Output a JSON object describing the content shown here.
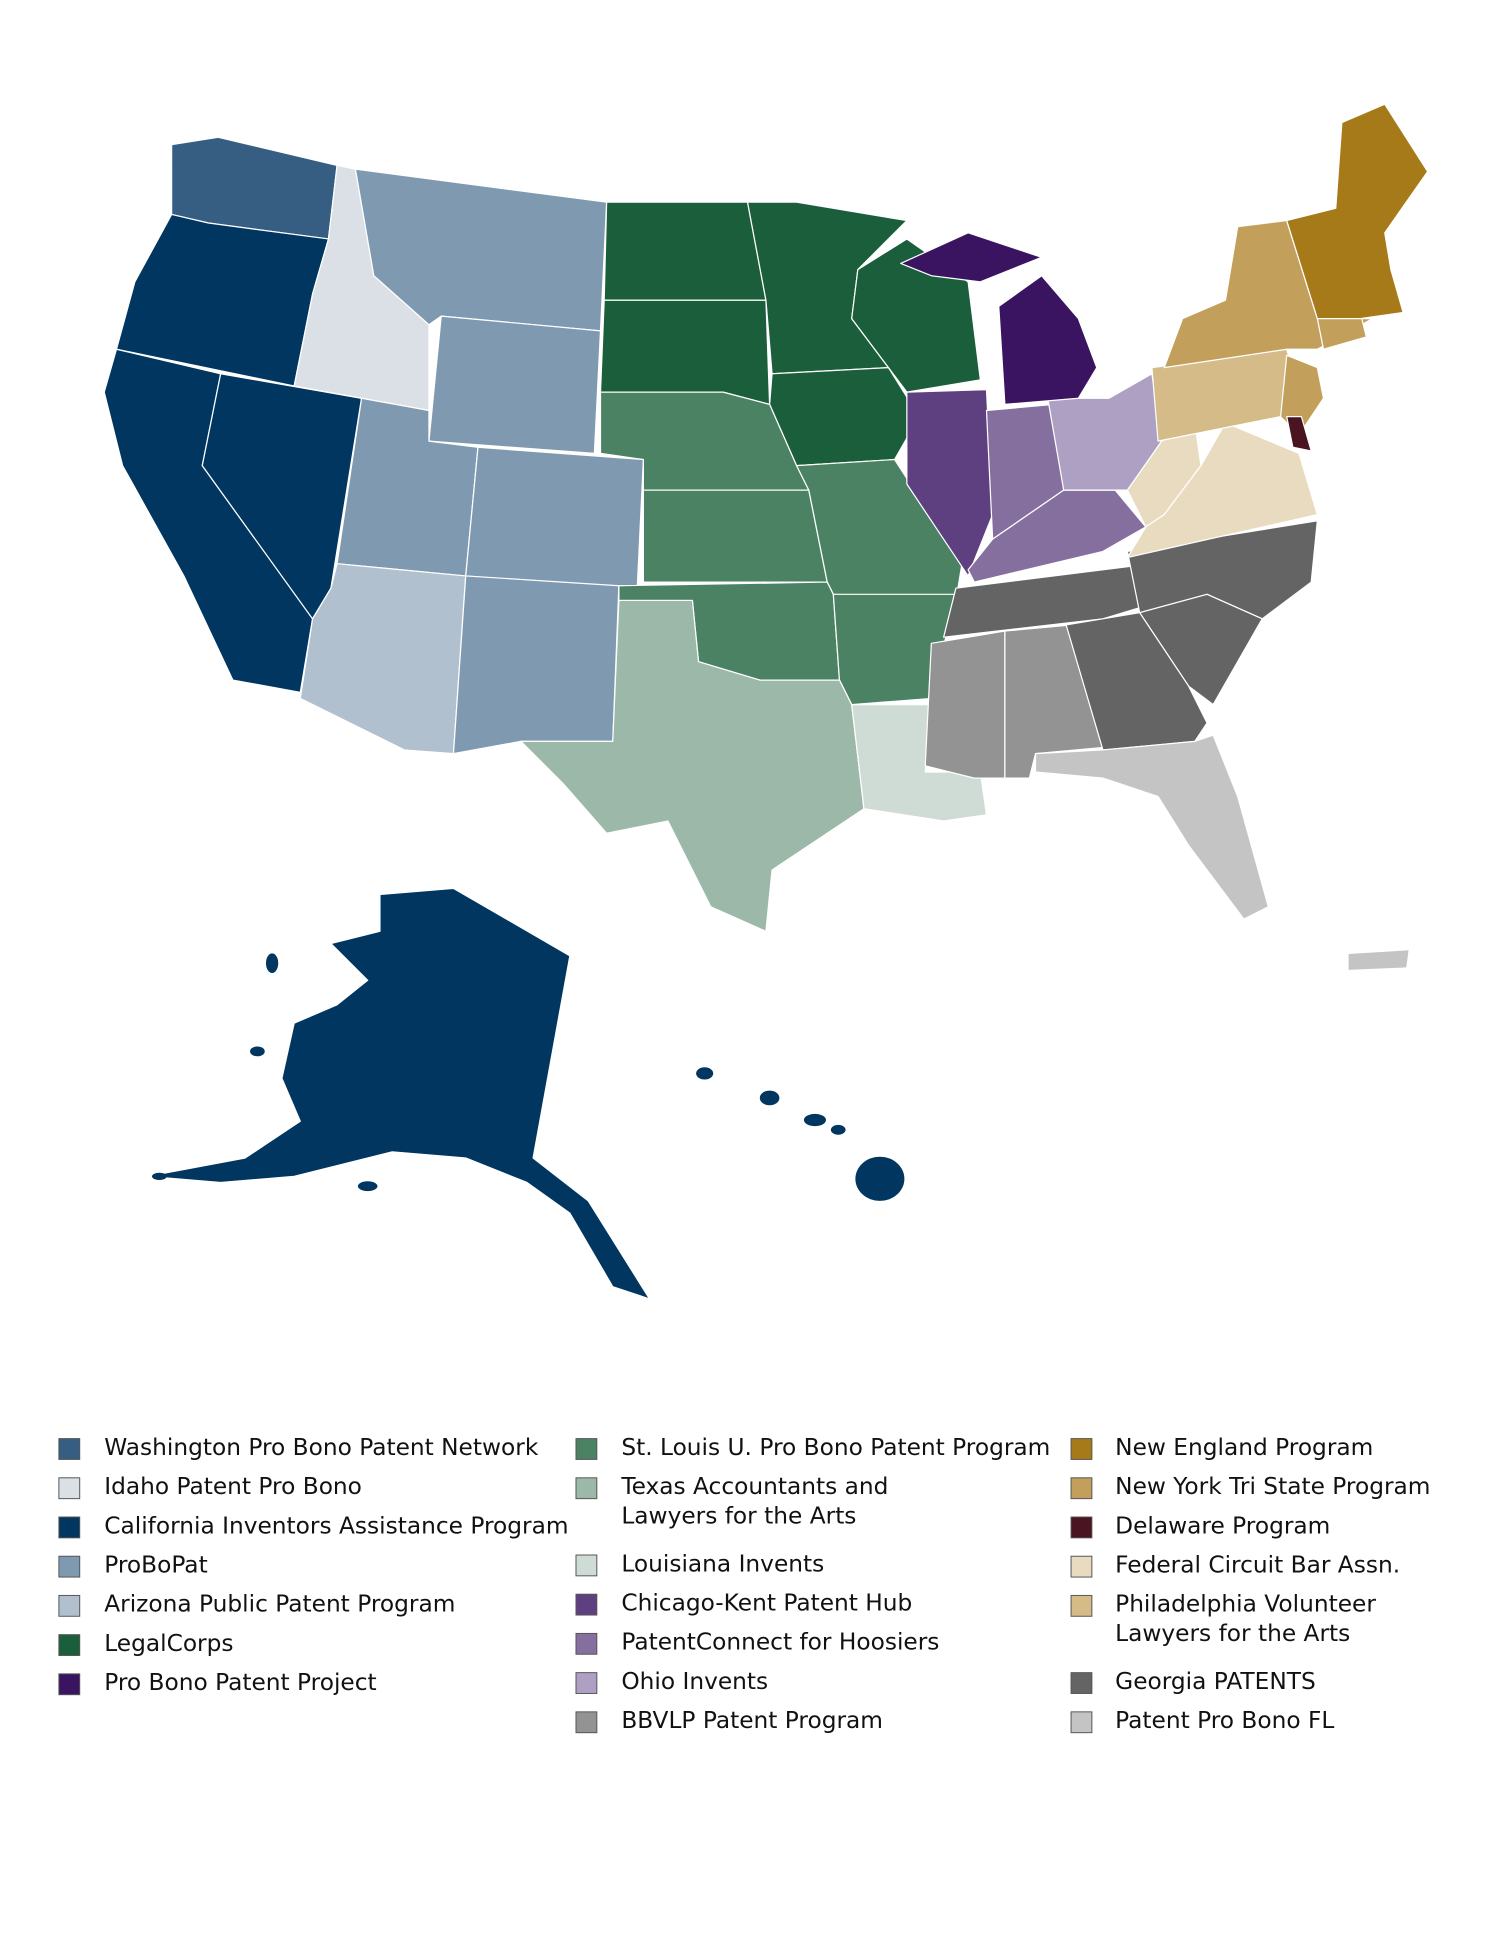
{
  "legend": {
    "items": [
      {
        "name": "Washington Pro Bono Patent Network",
        "color": "#355e82"
      },
      {
        "name": "Idaho Patent Pro Bono",
        "color": "#dbe0e7"
      },
      {
        "name": "California Inventors Assistance Program",
        "color": "#003660"
      },
      {
        "name": "ProBoPat",
        "color": "#7f9ab0"
      },
      {
        "name": "Arizona Public Patent Program",
        "color": "#b0c0cf"
      },
      {
        "name": "LegalCorps",
        "color": "#1b5e3b"
      },
      {
        "name": "Pro Bono Patent Project",
        "color": "#3a1460"
      },
      {
        "name": "St. Louis U. Pro Bono Patent Program",
        "color": "#4b8264"
      },
      {
        "name": [
          "Texas Accountants and",
          "Lawyers for the Arts"
        ],
        "color": "#9bb8a8"
      },
      {
        "name": "Louisiana Invents",
        "color": "#cfdcd5"
      },
      {
        "name": "Chicago-Kent Patent Hub",
        "color": "#5e3f80"
      },
      {
        "name": "PatentConnect for Hoosiers",
        "color": "#856f9f"
      },
      {
        "name": "Ohio Invents",
        "color": "#aea0c3"
      },
      {
        "name": "BBVLP Patent Program",
        "color": "#939393"
      },
      {
        "name": "New England Program",
        "color": "#a77a19"
      },
      {
        "name": "New York Tri State Program",
        "color": "#c2a05b"
      },
      {
        "name": "Delaware Program",
        "color": "#4a1420"
      },
      {
        "name": "Federal Circuit Bar Assn.",
        "color": "#e8dbbf"
      },
      {
        "name": [
          "Philadelphia Volunteer",
          "Lawyers for the Arts"
        ],
        "color": "#d4bb88"
      },
      {
        "name": "Georgia PATENTS",
        "color": "#646464"
      },
      {
        "name": "Patent Pro Bono FL",
        "color": "#c4c4c4"
      }
    ]
  }
}
